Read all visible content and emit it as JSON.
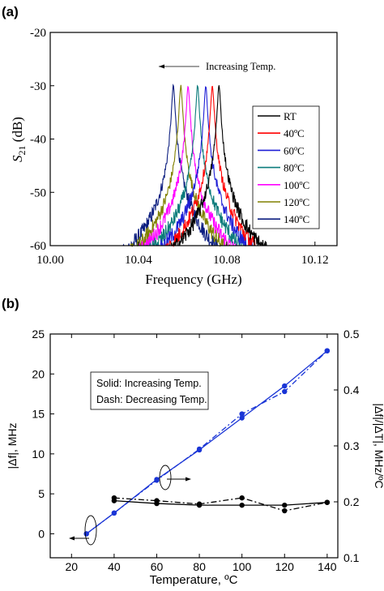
{
  "chart_data": [
    {
      "panel_label": "(a)",
      "type": "line",
      "xlabel": "Frequency (GHz)",
      "ylabel_main": "S",
      "ylabel_sub": "21",
      "ylabel_unit": " (dB)",
      "xlim": [
        10.0,
        10.13
      ],
      "ylim": [
        -60,
        -20
      ],
      "xticks": [
        10.0,
        10.04,
        10.08,
        10.12
      ],
      "xtick_labels": [
        "10.00",
        "10.04",
        "10.08",
        "10.12"
      ],
      "yticks": [
        -60,
        -50,
        -40,
        -30,
        -20
      ],
      "ytick_labels": [
        "-60",
        "-50",
        "-40",
        "-30",
        "-20"
      ],
      "annotation": "Increasing Temp.",
      "legend_position": "right",
      "peak_level_db": -30,
      "series": [
        {
          "name": "RT",
          "color": "#000000",
          "center_ghz": 10.0765
        },
        {
          "name": "40ºC",
          "color": "#ff0000",
          "center_ghz": 10.0735
        },
        {
          "name": "60ºC",
          "color": "#1f1fd6",
          "center_ghz": 10.0705
        },
        {
          "name": "80ºC",
          "color": "#0b7b7b",
          "center_ghz": 10.0668
        },
        {
          "name": "100ºC",
          "color": "#ff00ff",
          "center_ghz": 10.0625
        },
        {
          "name": "120ºC",
          "color": "#808000",
          "center_ghz": 10.0592
        },
        {
          "name": "140ºC",
          "color": "#0d1f80",
          "center_ghz": 10.0558
        }
      ]
    },
    {
      "panel_label": "(b)",
      "type": "line",
      "xlabel": "Temperature, ºC",
      "ylabel_left": "|Δf|, MHz",
      "ylabel_right": "|Δf|/|ΔT|, MHz/ºC",
      "xlim": [
        10,
        145
      ],
      "ylim_left": [
        -3,
        25
      ],
      "ylim_right": [
        0.1,
        0.5
      ],
      "xticks": [
        20,
        40,
        60,
        80,
        100,
        120,
        140
      ],
      "xtick_labels": [
        "20",
        "40",
        "60",
        "80",
        "100",
        "120",
        "140"
      ],
      "yticks_left": [
        0,
        5,
        10,
        15,
        20,
        25
      ],
      "ytick_labels_left": [
        "0",
        "5",
        "10",
        "15",
        "20",
        "25"
      ],
      "yticks_right": [
        0.1,
        0.2,
        0.3,
        0.4,
        0.5
      ],
      "ytick_labels_right": [
        "0.1",
        "0.2",
        "0.3",
        "0.4",
        "0.5"
      ],
      "legend_lines": [
        "Solid: Increasing Temp.",
        "Dash: Decreasing Temp."
      ],
      "series": [
        {
          "role": "shift_increasing",
          "axis": "left",
          "style": "solid",
          "color": "#1a35d6",
          "x": [
            27,
            40,
            60,
            80,
            100,
            120,
            140
          ],
          "y": [
            0,
            2.6,
            6.8,
            10.5,
            14.5,
            18.5,
            22.9
          ]
        },
        {
          "role": "shift_decreasing",
          "axis": "left",
          "style": "dashdot",
          "color": "#1a35d6",
          "x": [
            27,
            40,
            60,
            80,
            100,
            120,
            140
          ],
          "y": [
            0,
            2.6,
            6.7,
            10.6,
            15.0,
            17.8,
            22.9
          ]
        },
        {
          "role": "rate_increasing",
          "axis": "right",
          "style": "solid",
          "color": "#000000",
          "x": [
            40,
            60,
            80,
            100,
            120,
            140
          ],
          "y": [
            0.202,
            0.197,
            0.194,
            0.194,
            0.194,
            0.199
          ]
        },
        {
          "role": "rate_decreasing",
          "axis": "right",
          "style": "dashdot",
          "color": "#000000",
          "x": [
            40,
            60,
            80,
            100,
            120,
            140
          ],
          "y": [
            0.207,
            0.202,
            0.196,
            0.207,
            0.184,
            0.199
          ]
        }
      ]
    }
  ]
}
